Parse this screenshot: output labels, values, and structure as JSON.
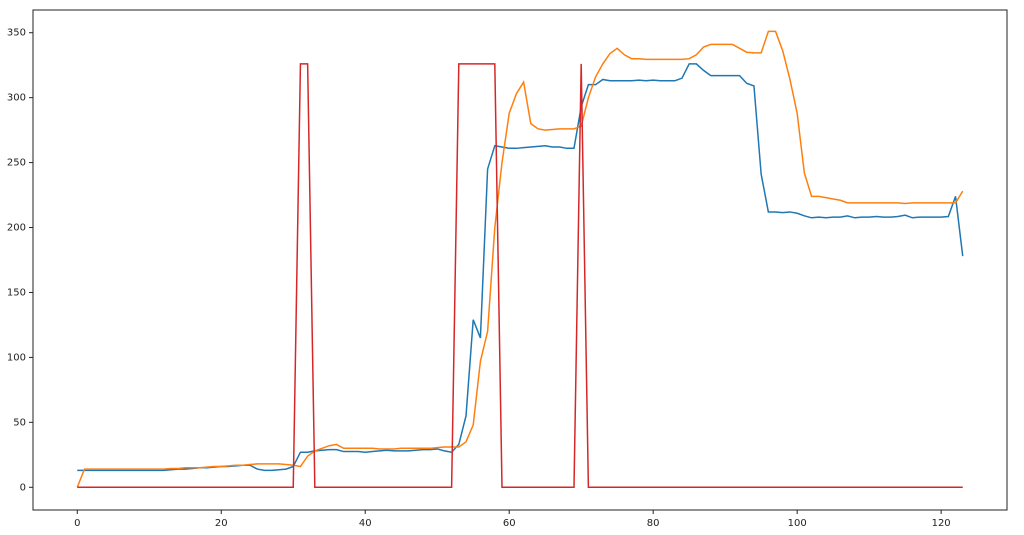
{
  "chart_data": {
    "type": "line",
    "x": [
      0,
      1,
      2,
      3,
      4,
      5,
      6,
      7,
      8,
      9,
      10,
      11,
      12,
      13,
      14,
      15,
      16,
      17,
      18,
      19,
      20,
      21,
      22,
      23,
      24,
      25,
      26,
      27,
      28,
      29,
      30,
      31,
      32,
      33,
      34,
      35,
      36,
      37,
      38,
      39,
      40,
      41,
      42,
      43,
      44,
      45,
      46,
      47,
      48,
      49,
      50,
      51,
      52,
      53,
      54,
      55,
      56,
      57,
      58,
      59,
      60,
      61,
      62,
      63,
      64,
      65,
      66,
      67,
      68,
      69,
      70,
      71,
      72,
      73,
      74,
      75,
      76,
      77,
      78,
      79,
      80,
      81,
      82,
      83,
      84,
      85,
      86,
      87,
      88,
      89,
      90,
      91,
      92,
      93,
      94,
      95,
      96,
      97,
      98,
      99,
      100,
      101,
      102,
      103,
      104,
      105,
      106,
      107,
      108,
      109,
      110,
      111,
      112,
      113,
      114,
      115,
      116,
      117,
      118,
      119,
      120,
      121,
      122,
      123
    ],
    "series": [
      {
        "color": "#1f77b4",
        "values": [
          13,
          13,
          13,
          13,
          13,
          13,
          13,
          13,
          13,
          13,
          13,
          13,
          13,
          13.5,
          14,
          14,
          14.5,
          15,
          15,
          15.5,
          16,
          16,
          16.5,
          17,
          17,
          14,
          13,
          13,
          13.5,
          14,
          16,
          27,
          27,
          28,
          28.5,
          29,
          29,
          27.5,
          27.5,
          27.5,
          27,
          27.5,
          28,
          28.5,
          28,
          28,
          28,
          28.5,
          29,
          29,
          29.5,
          28,
          27,
          33,
          55,
          129,
          115,
          245,
          263,
          262,
          261,
          261,
          261.5,
          262,
          262.5,
          263,
          262,
          262,
          261,
          261,
          293,
          310,
          310,
          314,
          313,
          313,
          313,
          313,
          313.5,
          313,
          313.5,
          313,
          313,
          313,
          315,
          326,
          326,
          321,
          317,
          317,
          317,
          317,
          317,
          311,
          309,
          241,
          212,
          212,
          211.5,
          212,
          211,
          209,
          207.5,
          208,
          207.5,
          208,
          208,
          209,
          207.5,
          208,
          208,
          208.5,
          208,
          208,
          208.5,
          209.5,
          207.5,
          208,
          208,
          208,
          208,
          208.5,
          224,
          178
        ]
      },
      {
        "color": "#ff7f0e",
        "values": [
          0,
          14,
          14,
          14,
          14,
          14,
          14,
          14,
          14,
          14,
          14,
          14,
          14,
          14.5,
          14.5,
          15,
          15,
          15,
          15.5,
          16,
          16,
          16.5,
          17,
          17,
          17.5,
          18,
          18,
          18,
          18,
          17.5,
          17,
          16,
          24,
          28,
          30,
          32,
          33,
          30,
          30,
          30,
          30,
          30,
          29.5,
          29.5,
          29.5,
          30,
          30,
          30,
          30,
          30,
          30.5,
          31,
          31,
          31,
          35,
          48,
          97,
          120,
          200,
          250,
          288,
          303,
          312,
          280,
          276,
          275,
          275.5,
          276,
          276,
          276,
          278,
          300,
          316,
          326,
          334,
          338,
          333,
          330,
          330,
          329.5,
          329.5,
          329.5,
          329.5,
          329.5,
          329.5,
          330,
          333,
          339,
          341,
          341,
          341,
          341,
          338,
          335,
          334.5,
          334.5,
          351,
          351,
          336,
          314,
          288,
          242,
          224,
          224,
          223,
          222,
          221,
          219,
          219,
          219,
          219,
          219,
          219,
          219,
          219,
          218.5,
          219,
          219,
          219,
          219,
          219,
          219,
          219,
          228
        ]
      },
      {
        "color": "#d62728",
        "values": [
          0,
          0,
          0,
          0,
          0,
          0,
          0,
          0,
          0,
          0,
          0,
          0,
          0,
          0,
          0,
          0,
          0,
          0,
          0,
          0,
          0,
          0,
          0,
          0,
          0,
          0,
          0,
          0,
          0,
          0,
          0,
          326,
          326,
          0,
          0,
          0,
          0,
          0,
          0,
          0,
          0,
          0,
          0,
          0,
          0,
          0,
          0,
          0,
          0,
          0,
          0,
          0,
          0,
          326,
          326,
          326,
          326,
          326,
          326,
          0,
          0,
          0,
          0,
          0,
          0,
          0,
          0,
          0,
          0,
          0,
          326,
          0,
          0,
          0,
          0,
          0,
          0,
          0,
          0,
          0,
          0,
          0,
          0,
          0,
          0,
          0,
          0,
          0,
          0,
          0,
          0,
          0,
          0,
          0,
          0,
          0,
          0,
          0,
          0,
          0,
          0,
          0,
          0,
          0,
          0,
          0,
          0,
          0,
          0,
          0,
          0,
          0,
          0,
          0,
          0,
          0,
          0,
          0,
          0,
          0,
          0,
          0,
          0,
          0
        ]
      }
    ],
    "xlim": [
      -6.15,
      129.15
    ],
    "ylim": [
      -17.5,
      367.5
    ],
    "xticks": [
      0,
      20,
      40,
      60,
      80,
      100,
      120
    ],
    "yticks": [
      0,
      50,
      100,
      150,
      200,
      250,
      300,
      350
    ]
  }
}
